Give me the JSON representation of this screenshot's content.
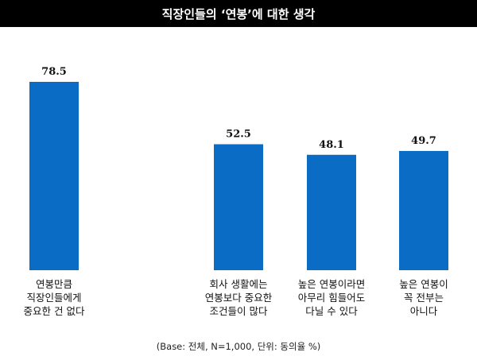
{
  "chart_data": {
    "type": "bar",
    "title": "직장인들의 ‘연봉’에 대한 생각",
    "categories": [
      "연봉만큼\n직장인들에게\n중요한 건 없다",
      "회사 생활에는\n연봉보다 중요한\n조건들이 많다",
      "높은 연봉이라면\n아무리 힘들어도\n다닐 수 있다",
      "높은 연봉이\n꼭 전부는\n아니다"
    ],
    "values": [
      78.5,
      52.5,
      48.1,
      49.7
    ],
    "value_labels": [
      "78.5",
      "52.5",
      "48.1",
      "49.7"
    ],
    "ylim": [
      0,
      78.5
    ],
    "grid": false,
    "bar_color": "#0a6cc4"
  },
  "footnote": "(Base: 전체, N=1,000, 단위: 동의율 %)"
}
